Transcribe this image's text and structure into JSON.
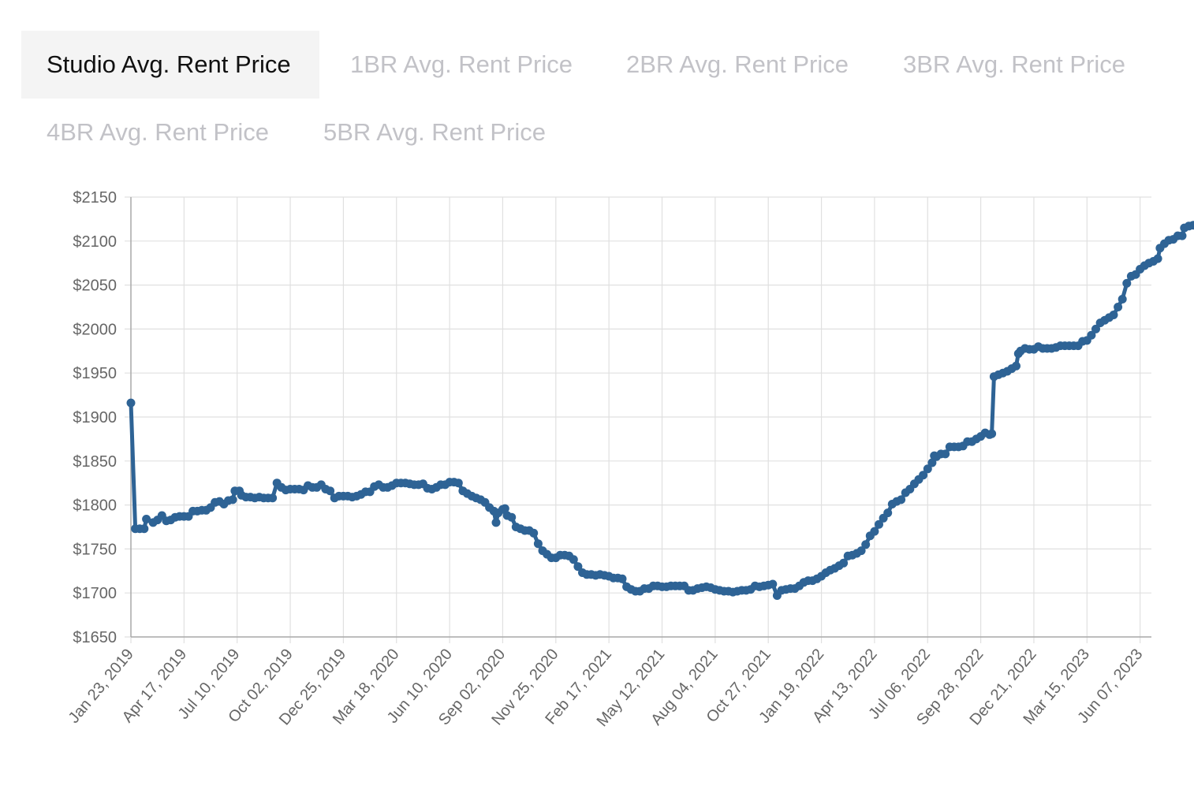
{
  "tabs": [
    {
      "label": "Studio Avg. Rent Price",
      "active": true
    },
    {
      "label": "1BR Avg. Rent Price",
      "active": false
    },
    {
      "label": "2BR Avg. Rent Price",
      "active": false
    },
    {
      "label": "3BR Avg. Rent Price",
      "active": false
    },
    {
      "label": "4BR Avg. Rent Price",
      "active": false
    },
    {
      "label": "5BR Avg. Rent Price",
      "active": false
    }
  ],
  "colors": {
    "series": "#2e6395",
    "grid": "#e0e0e0",
    "axis": "#aaaaaa",
    "tick_text": "#666666"
  },
  "chart_data": {
    "type": "line",
    "title": "",
    "xlabel": "",
    "ylabel": "",
    "y_tick_labels": [
      "$1650",
      "$1700",
      "$1750",
      "$1800",
      "$1850",
      "$1900",
      "$1950",
      "$2000",
      "$2050",
      "$2100",
      "$2150"
    ],
    "y_ticks": [
      1650,
      1700,
      1750,
      1800,
      1850,
      1900,
      1950,
      2000,
      2050,
      2100,
      2150
    ],
    "ylim": [
      1650,
      2150
    ],
    "x_tick_labels": [
      "Jan 23, 2019",
      "Apr 17, 2019",
      "Jul 10, 2019",
      "Oct 02, 2019",
      "Dec 25, 2019",
      "Mar 18, 2020",
      "Jun 10, 2020",
      "Sep 02, 2020",
      "Nov 25, 2020",
      "Feb 17, 2021",
      "May 12, 2021",
      "Aug 04, 2021",
      "Oct 27, 2021",
      "Jan 19, 2022",
      "Apr 13, 2022",
      "Jul 06, 2022",
      "Sep 28, 2022",
      "Dec 21, 2022",
      "Mar 15, 2023",
      "Jun 07, 2023"
    ],
    "x_unit": "weeks since Jan 23, 2019",
    "xlim": [
      0,
      232
    ],
    "series": [
      {
        "name": "Studio Avg. Rent Price",
        "points": [
          [
            0,
            1916
          ],
          [
            1,
            1773
          ],
          [
            2,
            1773
          ],
          [
            3,
            1773
          ],
          [
            3.5,
            1784
          ],
          [
            5,
            1780
          ],
          [
            6,
            1783
          ],
          [
            7,
            1788
          ],
          [
            8,
            1782
          ],
          [
            9,
            1783
          ],
          [
            10,
            1786
          ],
          [
            11,
            1787
          ],
          [
            12,
            1787
          ],
          [
            13,
            1787
          ],
          [
            14,
            1793
          ],
          [
            15,
            1793
          ],
          [
            16,
            1794
          ],
          [
            17,
            1794
          ],
          [
            18,
            1797
          ],
          [
            19,
            1803
          ],
          [
            20,
            1804
          ],
          [
            21,
            1801
          ],
          [
            22,
            1805
          ],
          [
            23,
            1806
          ],
          [
            23.5,
            1816
          ],
          [
            24.5,
            1816
          ],
          [
            25,
            1811
          ],
          [
            26,
            1809
          ],
          [
            27,
            1809
          ],
          [
            28,
            1808
          ],
          [
            29,
            1809
          ],
          [
            30,
            1808
          ],
          [
            31,
            1808
          ],
          [
            32,
            1808
          ],
          [
            33,
            1825
          ],
          [
            34,
            1820
          ],
          [
            35,
            1817
          ],
          [
            36,
            1818
          ],
          [
            37,
            1818
          ],
          [
            38,
            1818
          ],
          [
            39,
            1817
          ],
          [
            40,
            1822
          ],
          [
            41,
            1820
          ],
          [
            42,
            1820
          ],
          [
            43,
            1823
          ],
          [
            44,
            1818
          ],
          [
            45,
            1816
          ],
          [
            46,
            1808
          ],
          [
            47,
            1810
          ],
          [
            48,
            1810
          ],
          [
            49,
            1810
          ],
          [
            50,
            1809
          ],
          [
            51,
            1810
          ],
          [
            52,
            1812
          ],
          [
            53,
            1815
          ],
          [
            54,
            1815
          ],
          [
            55,
            1821
          ],
          [
            56,
            1823
          ],
          [
            57,
            1820
          ],
          [
            58,
            1820
          ],
          [
            59,
            1822
          ],
          [
            60,
            1825
          ],
          [
            61,
            1825
          ],
          [
            62,
            1825
          ],
          [
            63,
            1824
          ],
          [
            64,
            1823
          ],
          [
            65,
            1823
          ],
          [
            66,
            1824
          ],
          [
            67,
            1819
          ],
          [
            68,
            1818
          ],
          [
            69,
            1820
          ],
          [
            70,
            1823
          ],
          [
            71,
            1823
          ],
          [
            72,
            1826
          ],
          [
            73,
            1826
          ],
          [
            74,
            1825
          ],
          [
            75,
            1816
          ],
          [
            76,
            1813
          ],
          [
            77,
            1810
          ],
          [
            78,
            1808
          ],
          [
            79,
            1806
          ],
          [
            80,
            1803
          ],
          [
            81,
            1797
          ],
          [
            82,
            1793
          ],
          [
            82.5,
            1780
          ],
          [
            83,
            1791
          ],
          [
            84,
            1795
          ],
          [
            84.5,
            1796
          ],
          [
            85,
            1788
          ],
          [
            86,
            1786
          ],
          [
            87,
            1775
          ],
          [
            88,
            1773
          ],
          [
            89,
            1771
          ],
          [
            90,
            1771
          ],
          [
            91,
            1768
          ],
          [
            92,
            1756
          ],
          [
            93,
            1748
          ],
          [
            94,
            1744
          ],
          [
            95,
            1740
          ],
          [
            96,
            1740
          ],
          [
            97,
            1743
          ],
          [
            98,
            1743
          ],
          [
            99,
            1742
          ],
          [
            100,
            1738
          ],
          [
            101,
            1730
          ],
          [
            102,
            1723
          ],
          [
            103,
            1721
          ],
          [
            104,
            1721
          ],
          [
            105,
            1720
          ],
          [
            106,
            1721
          ],
          [
            107,
            1720
          ],
          [
            108,
            1719
          ],
          [
            109,
            1717
          ],
          [
            110,
            1717
          ],
          [
            111,
            1716
          ],
          [
            112,
            1707
          ],
          [
            113,
            1704
          ],
          [
            114,
            1702
          ],
          [
            115,
            1702
          ],
          [
            116,
            1705
          ],
          [
            117,
            1705
          ],
          [
            118,
            1708
          ],
          [
            119,
            1708
          ],
          [
            120,
            1707
          ],
          [
            121,
            1707
          ],
          [
            122,
            1708
          ],
          [
            123,
            1708
          ],
          [
            124,
            1708
          ],
          [
            125,
            1708
          ],
          [
            126,
            1703
          ],
          [
            127,
            1703
          ],
          [
            128,
            1705
          ],
          [
            129,
            1706
          ],
          [
            130,
            1707
          ],
          [
            131,
            1706
          ],
          [
            132,
            1704
          ],
          [
            133,
            1703
          ],
          [
            134,
            1702
          ],
          [
            135,
            1702
          ],
          [
            136,
            1701
          ],
          [
            137,
            1702
          ],
          [
            138,
            1703
          ],
          [
            139,
            1703
          ],
          [
            140,
            1704
          ],
          [
            141,
            1708
          ],
          [
            142,
            1707
          ],
          [
            143,
            1708
          ],
          [
            144,
            1709
          ],
          [
            145,
            1710
          ],
          [
            146,
            1697
          ],
          [
            147,
            1703
          ],
          [
            148,
            1704
          ],
          [
            149,
            1705
          ],
          [
            150,
            1705
          ],
          [
            151,
            1708
          ],
          [
            152,
            1712
          ],
          [
            153,
            1714
          ],
          [
            154,
            1714
          ],
          [
            155,
            1716
          ],
          [
            156,
            1719
          ],
          [
            157,
            1723
          ],
          [
            158,
            1726
          ],
          [
            159,
            1728
          ],
          [
            160,
            1731
          ],
          [
            161,
            1734
          ],
          [
            162,
            1742
          ],
          [
            163,
            1743
          ],
          [
            164,
            1745
          ],
          [
            165,
            1748
          ],
          [
            166,
            1755
          ],
          [
            167,
            1765
          ],
          [
            168,
            1770
          ],
          [
            169,
            1778
          ],
          [
            170,
            1785
          ],
          [
            171,
            1791
          ],
          [
            172,
            1801
          ],
          [
            173,
            1804
          ],
          [
            174,
            1806
          ],
          [
            175,
            1814
          ],
          [
            176,
            1818
          ],
          [
            177,
            1824
          ],
          [
            178,
            1829
          ],
          [
            179,
            1834
          ],
          [
            180,
            1841
          ],
          [
            181,
            1848
          ],
          [
            181.5,
            1856
          ],
          [
            182,
            1855
          ],
          [
            183,
            1858
          ],
          [
            184,
            1858
          ],
          [
            185,
            1866
          ],
          [
            186,
            1866
          ],
          [
            187,
            1866
          ],
          [
            188,
            1867
          ],
          [
            189,
            1872
          ],
          [
            190,
            1872
          ],
          [
            191,
            1875
          ],
          [
            192,
            1878
          ],
          [
            193,
            1882
          ],
          [
            194,
            1880
          ],
          [
            194.5,
            1881
          ],
          [
            195,
            1946
          ],
          [
            196,
            1948
          ],
          [
            197,
            1950
          ],
          [
            198,
            1952
          ],
          [
            199,
            1955
          ],
          [
            200,
            1958
          ],
          [
            200.5,
            1972
          ],
          [
            201,
            1975
          ],
          [
            202,
            1978
          ],
          [
            203,
            1977
          ],
          [
            204,
            1977
          ],
          [
            205,
            1980
          ],
          [
            206,
            1978
          ],
          [
            207,
            1978
          ],
          [
            208,
            1978
          ],
          [
            209,
            1979
          ],
          [
            210,
            1981
          ],
          [
            211,
            1981
          ],
          [
            212,
            1981
          ],
          [
            213,
            1981
          ],
          [
            214,
            1981
          ],
          [
            215,
            1986
          ],
          [
            216,
            1987
          ],
          [
            217,
            1993
          ],
          [
            218,
            2000
          ],
          [
            219,
            2007
          ],
          [
            220,
            2010
          ],
          [
            221,
            2013
          ],
          [
            222,
            2016
          ],
          [
            223,
            2025
          ],
          [
            224,
            2034
          ],
          [
            225,
            2052
          ],
          [
            226,
            2060
          ],
          [
            227,
            2062
          ],
          [
            228,
            2068
          ],
          [
            229,
            2072
          ],
          [
            230,
            2075
          ],
          [
            231,
            2077
          ],
          [
            232,
            2080
          ],
          [
            232.5,
            2092
          ],
          [
            233.5,
            2097
          ],
          [
            234.5,
            2101
          ],
          [
            235.5,
            2102
          ],
          [
            236.5,
            2106
          ],
          [
            237.5,
            2106
          ],
          [
            238,
            2115
          ],
          [
            239,
            2117
          ],
          [
            240,
            2118
          ],
          [
            241,
            2119
          ]
        ]
      }
    ]
  }
}
